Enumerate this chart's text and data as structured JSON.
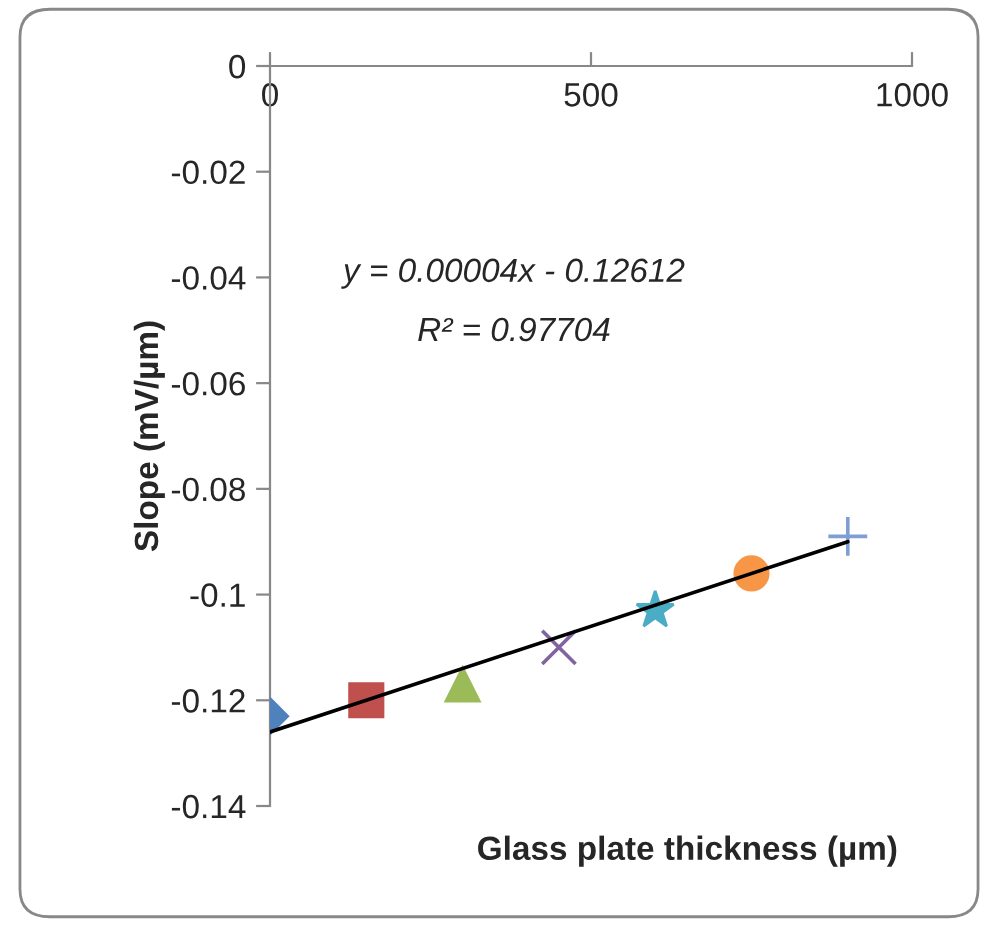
{
  "chart_data": {
    "type": "scatter",
    "xlabel": "Glass plate thickness (µm)",
    "ylabel": "Slope (mV/µm)",
    "annotations": [
      "y = 0.00004x - 0.12612",
      "R² = 0.97704"
    ],
    "xlim": [
      0,
      1000
    ],
    "xticks": [
      0,
      500,
      1000
    ],
    "ylim": [
      -0.14,
      0
    ],
    "yticks": [
      0,
      -0.02,
      -0.04,
      -0.06,
      -0.08,
      -0.1,
      -0.12,
      -0.14
    ],
    "grid": false,
    "legend": false,
    "series": [
      {
        "x": [
          0
        ],
        "values": [
          -0.123
        ],
        "color": "#4f81bd",
        "marker": "diamond"
      },
      {
        "x": [
          150
        ],
        "values": [
          -0.12
        ],
        "color": "#c0504d",
        "marker": "square"
      },
      {
        "x": [
          300
        ],
        "values": [
          -0.117
        ],
        "color": "#9bbb59",
        "marker": "triangle"
      },
      {
        "x": [
          450
        ],
        "values": [
          -0.11
        ],
        "color": "#8064a2",
        "marker": "cross"
      },
      {
        "x": [
          600
        ],
        "values": [
          -0.103
        ],
        "color": "#4bacc6",
        "marker": "star"
      },
      {
        "x": [
          750
        ],
        "values": [
          -0.096
        ],
        "color": "#f79646",
        "marker": "circle"
      },
      {
        "x": [
          900
        ],
        "values": [
          -0.089
        ],
        "color": "#7f9fd4",
        "marker": "cross"
      },
      {
        "type": "line",
        "x": [
          0,
          900
        ],
        "values": [
          -0.126,
          -0.09
        ],
        "color": "#000000",
        "marker": "none",
        "line_style": "solid"
      }
    ]
  }
}
